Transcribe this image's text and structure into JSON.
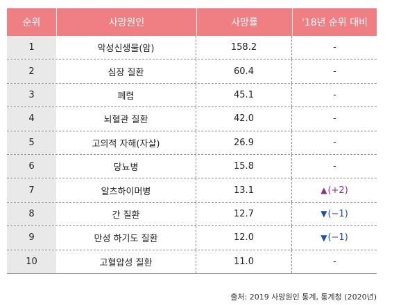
{
  "headers": {
    "rank": "순위",
    "cause": "사망원인",
    "rate": "사망률",
    "change": "'18년 순위 대비"
  },
  "rows": [
    {
      "rank": "1",
      "cause": "악성신생물(암)",
      "rate": "158.2",
      "change_mark": "",
      "change": "-"
    },
    {
      "rank": "2",
      "cause": "심장 질환",
      "rate": "60.4",
      "change_mark": "",
      "change": "-"
    },
    {
      "rank": "3",
      "cause": "폐렴",
      "rate": "45.1",
      "change_mark": "",
      "change": "-"
    },
    {
      "rank": "4",
      "cause": "뇌혈관 질환",
      "rate": "42.0",
      "change_mark": "",
      "change": "-"
    },
    {
      "rank": "5",
      "cause": "고의적 자해(자살)",
      "rate": "26.9",
      "change_mark": "",
      "change": "-"
    },
    {
      "rank": "6",
      "cause": "당뇨병",
      "rate": "15.8",
      "change_mark": "",
      "change": "-"
    },
    {
      "rank": "7",
      "cause": "알츠하이머병",
      "rate": "13.1",
      "change_mark": "▲",
      "change": "(+2)"
    },
    {
      "rank": "8",
      "cause": "간 질환",
      "rate": "12.7",
      "change_mark": "▼",
      "change": "(−1)"
    },
    {
      "rank": "9",
      "cause": "만성 하기도 질환",
      "rate": "12.0",
      "change_mark": "▼",
      "change": "(−1)"
    },
    {
      "rank": "10",
      "cause": "고혈압성 질환",
      "rate": "11.0",
      "change_mark": "",
      "change": "-"
    }
  ],
  "colors": {
    "header_bg": "#f07f84",
    "up": "#8b2f8e",
    "down": "#1f4fa8"
  },
  "source": "출처: 2019 사망원인 통계, 통계청 (2020년)"
}
